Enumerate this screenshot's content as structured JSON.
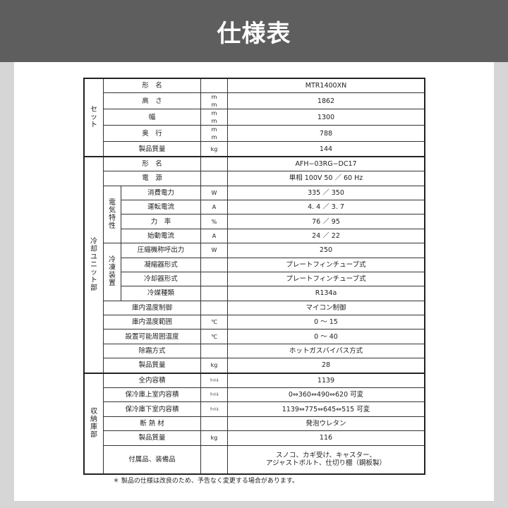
{
  "header": {
    "title": "仕様表"
  },
  "groups": [
    {
      "label": "セット",
      "rows": [
        {
          "label": "形　名",
          "unit": "",
          "value": "MTR1400XN"
        },
        {
          "label": "高　さ",
          "unit": "mm",
          "value": "1862"
        },
        {
          "label": "幅",
          "unit": "mm",
          "value": "1300"
        },
        {
          "label": "奥　行",
          "unit": "mm",
          "value": "788"
        },
        {
          "label": "製品質量",
          "unit": "kg",
          "value": "144"
        }
      ]
    },
    {
      "label": "冷却ユニット部",
      "rows": [
        {
          "label": "形　名",
          "unit": "",
          "value": "AFH−03RG−DC17"
        },
        {
          "label": "電　源",
          "unit": "",
          "value": "単相 100V 50 ／ 60 Hz"
        },
        {
          "sub": "電気特性",
          "label": "消費電力",
          "unit": "W",
          "value": "335 ／ 350"
        },
        {
          "sub": "電気特性",
          "label": "運転電流",
          "unit": "A",
          "value": "4. 4 ／ 3. 7"
        },
        {
          "sub": "電気特性",
          "label": "力　率",
          "unit": "%",
          "value": "76 ／ 95"
        },
        {
          "sub": "電気特性",
          "label": "始動電流",
          "unit": "A",
          "value": "24 ／ 22"
        },
        {
          "sub": "冷凍装置",
          "label": "圧縮機称呼出力",
          "unit": "W",
          "value": "250"
        },
        {
          "sub": "冷凍装置",
          "label": "凝縮器形式",
          "unit": "",
          "value": "プレートフィンチューブ式"
        },
        {
          "sub": "冷凍装置",
          "label": "冷却器形式",
          "unit": "",
          "value": "プレートフィンチューブ式"
        },
        {
          "sub": "冷凍装置",
          "label": "冷媒種類",
          "unit": "",
          "value": "R134a"
        },
        {
          "label": "庫内温度制御",
          "unit": "",
          "value": "マイコン制御"
        },
        {
          "label": "庫内温度範囲",
          "unit": "℃",
          "value": "0 ～ 15"
        },
        {
          "label": "設置可能周囲温度",
          "unit": "℃",
          "value": "0 ～ 40"
        },
        {
          "label": "除霜方式",
          "unit": "",
          "value": "ホットガスバイパス方式"
        },
        {
          "label": "製品質量",
          "unit": "kg",
          "value": "28"
        }
      ]
    },
    {
      "label": "収納庫部",
      "rows": [
        {
          "label": "全内容積",
          "unit": "ﾘｯﾄﾙ",
          "value": "1139"
        },
        {
          "label": "保冷庫上室内容積",
          "unit": "ﾘｯﾄﾙ",
          "value": "0⇔360⇔490⇔620 可変"
        },
        {
          "label": "保冷庫下室内容積",
          "unit": "ﾘｯﾄﾙ",
          "value": "1139⇔775⇔645⇔515 可変"
        },
        {
          "label": "断 熱 材",
          "unit": "",
          "value": "発泡ウレタン"
        },
        {
          "label": "製品質量",
          "unit": "kg",
          "value": "116"
        },
        {
          "label": "付属品、装備品",
          "unit": "",
          "value": "スノコ、カギ受け、キャスター、\nアジャストボルト、仕切り棚（鋼板製）",
          "tall": true
        }
      ]
    }
  ],
  "note": "＊ 製品の仕様は改良のため、予告なく変更する場合があります。"
}
